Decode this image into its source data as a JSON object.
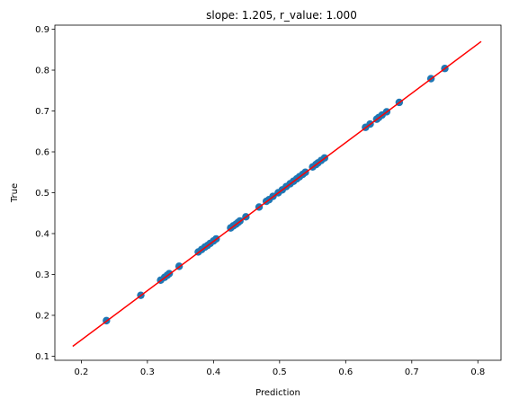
{
  "chart_data": {
    "type": "scatter",
    "title": "slope: 1.205, r_value: 1.000",
    "xlabel": "Prediction",
    "ylabel": "True",
    "xlim": [
      0.16,
      0.835
    ],
    "ylim": [
      0.09,
      0.91
    ],
    "xticks": [
      "0.2",
      "0.3",
      "0.4",
      "0.5",
      "0.6",
      "0.7",
      "0.8"
    ],
    "yticks": [
      "0.1",
      "0.2",
      "0.3",
      "0.4",
      "0.5",
      "0.6",
      "0.7",
      "0.8",
      "0.9"
    ],
    "grid": false,
    "colors": {
      "points": "#1f77b4",
      "fit_line": "#ff0000",
      "axes": "#000000"
    },
    "series": [
      {
        "type": "scatter",
        "x": [
          0.238,
          0.29,
          0.32,
          0.326,
          0.33,
          0.333,
          0.348,
          0.377,
          0.382,
          0.387,
          0.391,
          0.395,
          0.4,
          0.404,
          0.426,
          0.43,
          0.434,
          0.437,
          0.44,
          0.449,
          0.469,
          0.48,
          0.484,
          0.49,
          0.498,
          0.504,
          0.51,
          0.516,
          0.521,
          0.526,
          0.53,
          0.535,
          0.539,
          0.55,
          0.555,
          0.558,
          0.563,
          0.568,
          0.63,
          0.637,
          0.647,
          0.65,
          0.655,
          0.662,
          0.681,
          0.729,
          0.75
        ],
        "y": [
          0.187,
          0.249,
          0.286,
          0.293,
          0.298,
          0.302,
          0.32,
          0.355,
          0.361,
          0.367,
          0.371,
          0.376,
          0.382,
          0.387,
          0.414,
          0.419,
          0.423,
          0.427,
          0.431,
          0.441,
          0.465,
          0.479,
          0.483,
          0.491,
          0.5,
          0.507,
          0.515,
          0.522,
          0.528,
          0.534,
          0.539,
          0.545,
          0.55,
          0.563,
          0.569,
          0.573,
          0.579,
          0.585,
          0.66,
          0.668,
          0.68,
          0.684,
          0.69,
          0.698,
          0.721,
          0.779,
          0.804
        ]
      },
      {
        "type": "line",
        "x": [
          0.187,
          0.805
        ],
        "y": [
          0.124,
          0.87
        ]
      }
    ]
  }
}
